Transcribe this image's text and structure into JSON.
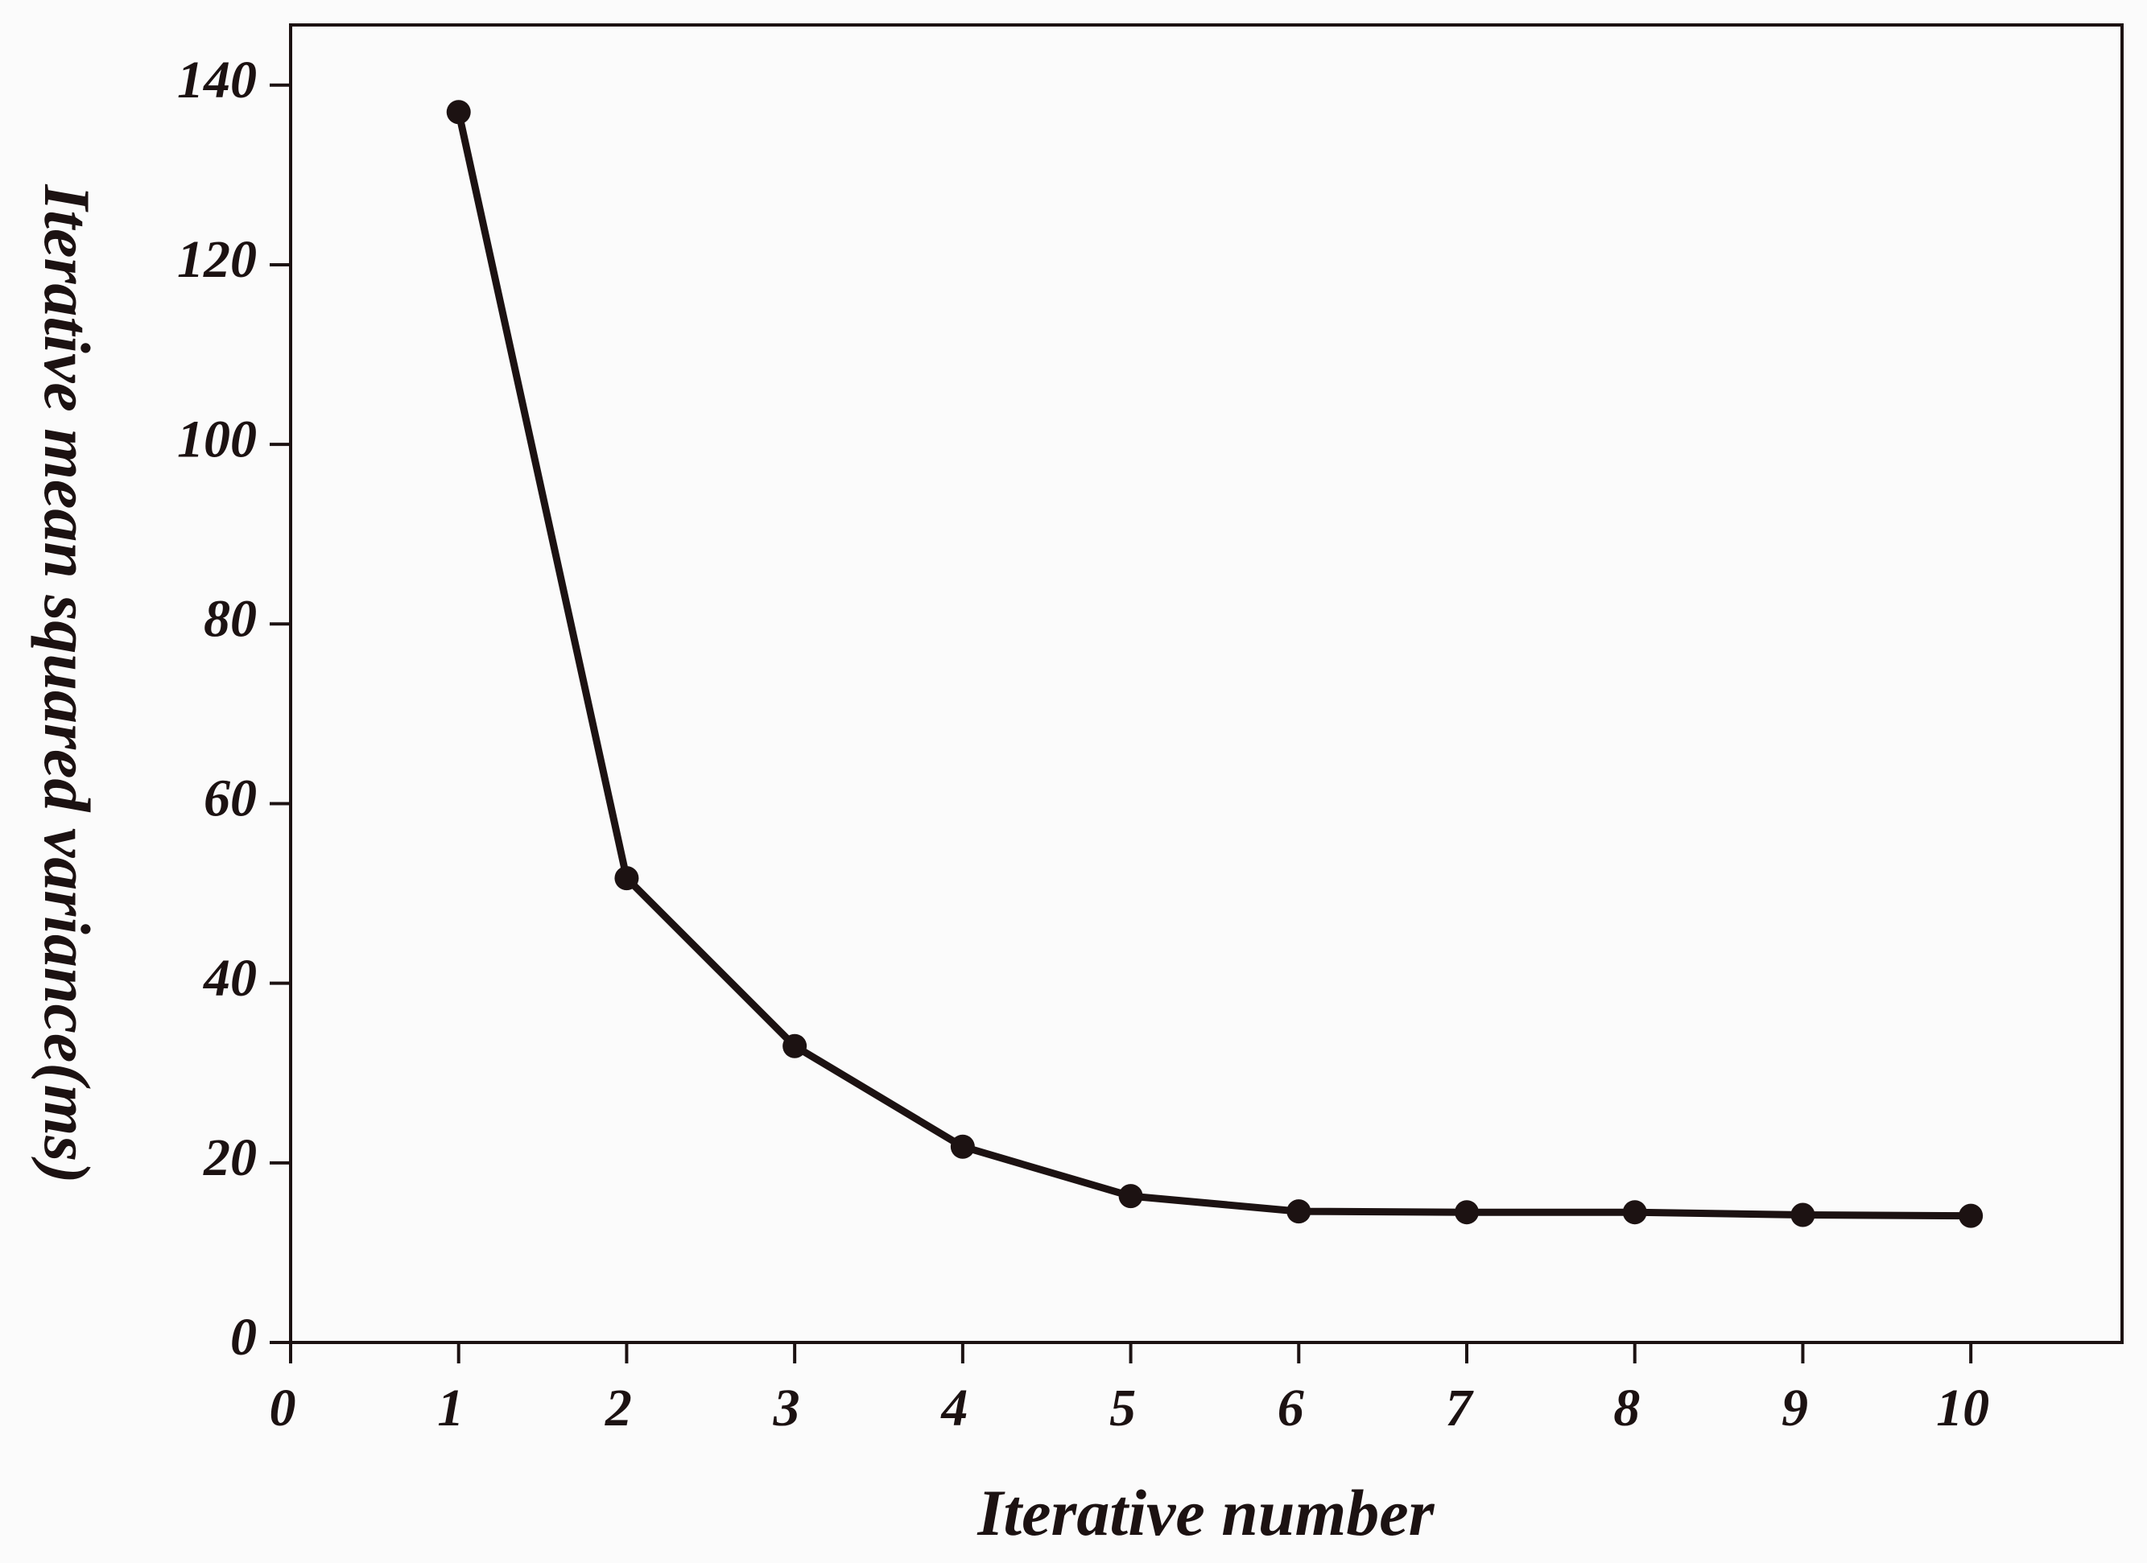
{
  "chart_data": {
    "type": "line",
    "x_label": "Iterative number",
    "y_label": "Iterative mean squared variance(ms)",
    "x": [
      1,
      2,
      3,
      4,
      5,
      6,
      7,
      8,
      9,
      10
    ],
    "values": [
      137,
      51.7,
      33,
      21.8,
      16.3,
      14.6,
      14.5,
      14.5,
      14.2,
      14.1
    ],
    "color": "#1c1212",
    "xlim": [
      0,
      10.9
    ],
    "ylim": [
      0,
      146.7
    ],
    "xticks": [
      0,
      1,
      2,
      3,
      4,
      5,
      6,
      7,
      8,
      9,
      10
    ],
    "yticks": [
      0,
      20,
      40,
      60,
      80,
      100,
      120,
      140
    ],
    "grid": false
  }
}
